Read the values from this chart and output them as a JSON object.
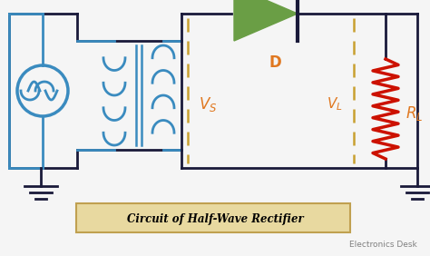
{
  "bg_color": "#f5f5f5",
  "wire_color_blue": "#3a8bbf",
  "wire_color_dark": "#1a1a3a",
  "diode_color": "#6a9e45",
  "resistor_color": "#cc1100",
  "vs_color": "#c8a030",
  "vl_color": "#c8a030",
  "label_color": "#e07820",
  "title": "Circuit of Half-Wave Rectifier",
  "subtitle": "Electronics Desk",
  "title_bg": "#e8d9a0",
  "title_border": "#c0a050"
}
